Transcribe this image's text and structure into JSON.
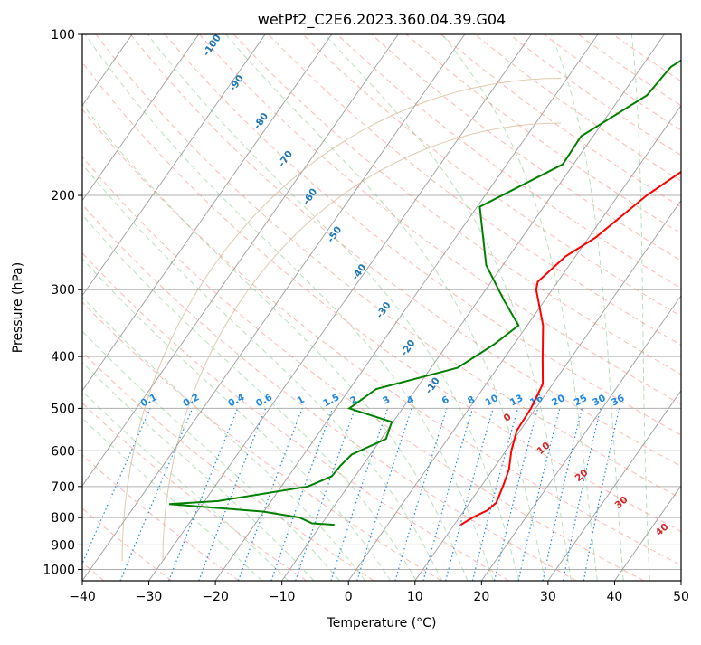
{
  "chart_data": {
    "type": "line",
    "title": "wetPf2_C2E6.2023.360.04.39.G04",
    "xlabel": "Temperature (°C)",
    "ylabel": "Pressure (hPa)",
    "xlim": [
      -40,
      50
    ],
    "ylim": [
      1050,
      100
    ],
    "y_scale": "log",
    "x_ticks": [
      -40,
      -30,
      -20,
      -10,
      0,
      10,
      20,
      30,
      40,
      50
    ],
    "y_ticks": [
      100,
      200,
      300,
      400,
      500,
      600,
      700,
      800,
      900,
      1000
    ],
    "grid": true,
    "series": [
      {
        "role": "temperature",
        "color": "#ff0000",
        "points": [
          [
            11.0,
            825
          ],
          [
            12.0,
            800
          ],
          [
            13.5,
            775
          ],
          [
            14.0,
            750
          ],
          [
            13.3,
            700
          ],
          [
            12.4,
            650
          ],
          [
            10.8,
            600
          ],
          [
            9.5,
            550
          ],
          [
            9.3,
            500
          ],
          [
            8.5,
            450
          ],
          [
            5.6,
            400
          ],
          [
            2.4,
            350
          ],
          [
            -2.4,
            300
          ],
          [
            -3.0,
            290
          ],
          [
            -1.5,
            260
          ],
          [
            1.0,
            240
          ],
          [
            4.3,
            200
          ],
          [
            8.6,
            170
          ],
          [
            12.4,
            150
          ],
          [
            16.3,
            130
          ],
          [
            22.0,
            115
          ],
          [
            24.2,
            108
          ],
          [
            25.5,
            100
          ]
        ]
      },
      {
        "role": "dewpoint",
        "color": "#008000",
        "points": [
          [
            -8.0,
            825
          ],
          [
            -11.5,
            820
          ],
          [
            -14.0,
            800
          ],
          [
            -20.0,
            780
          ],
          [
            -35.0,
            755
          ],
          [
            -28.0,
            745
          ],
          [
            -16.0,
            700
          ],
          [
            -13.5,
            670
          ],
          [
            -13.3,
            640
          ],
          [
            -12.8,
            610
          ],
          [
            -9.3,
            570
          ],
          [
            -10.2,
            530
          ],
          [
            -18.0,
            500
          ],
          [
            -16.0,
            460
          ],
          [
            -6.0,
            420
          ],
          [
            -3.0,
            380
          ],
          [
            -1.3,
            350
          ],
          [
            -6.0,
            315
          ],
          [
            -12.5,
            270
          ],
          [
            -19.6,
            210
          ],
          [
            -11.6,
            175
          ],
          [
            -11.8,
            155
          ],
          [
            -6.2,
            130
          ],
          [
            -5.6,
            115
          ],
          [
            -1.3,
            100
          ]
        ]
      }
    ],
    "isotherm_spacing_c": 10,
    "dry_adiabat_labels": [
      "-100",
      "-90",
      "-80",
      "-70",
      "-60",
      "-50",
      "-40",
      "-30",
      "-20",
      "-10"
    ],
    "moist_adiabat_labels": [
      "0",
      "10",
      "20",
      "30",
      "40"
    ],
    "mixing_ratio_labels": [
      "0.1",
      "0.2",
      "0.4",
      "0.6",
      "1",
      "1.5",
      "2",
      "3",
      "4",
      "6",
      "8",
      "10",
      "13",
      "16",
      "20",
      "25",
      "30",
      "36"
    ],
    "colors": {
      "isotherm": "#9e9e9e",
      "isobar": "#b0b0b0",
      "dry_adiabat": "#fa8072",
      "moist_adiabat": "#66bb6a",
      "mixing_ratio": "#1e88e5",
      "tan_curve": "#d2b48c"
    }
  }
}
